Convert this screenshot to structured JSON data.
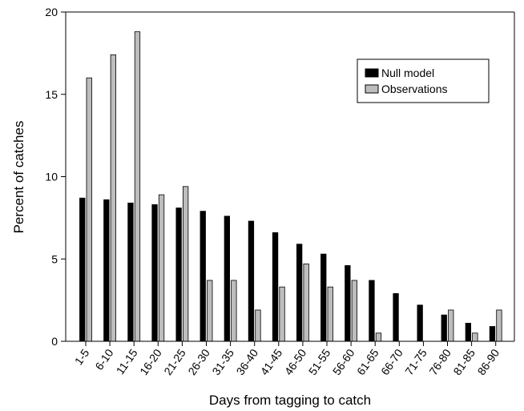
{
  "chart_data": {
    "type": "bar",
    "title": "",
    "xlabel": "Days from tagging to catch",
    "ylabel": "Percent of catches",
    "ylim": [
      0,
      20
    ],
    "yticks": [
      0,
      5,
      10,
      15,
      20
    ],
    "grid": false,
    "legend_position": "top-right",
    "categories": [
      "1-5",
      "6-10",
      "11-15",
      "16-20",
      "21-25",
      "26-30",
      "31-35",
      "36-40",
      "41-45",
      "46-50",
      "51-55",
      "56-60",
      "61-65",
      "66-70",
      "71-75",
      "76-80",
      "81-85",
      "86-90"
    ],
    "series": [
      {
        "name": "Null model",
        "color": "#000000",
        "values": [
          8.7,
          8.6,
          8.4,
          8.3,
          8.1,
          7.9,
          7.6,
          7.3,
          6.6,
          5.9,
          5.3,
          4.6,
          3.7,
          2.9,
          2.2,
          1.6,
          1.1,
          0.9
        ]
      },
      {
        "name": "Observations",
        "color": "#bdbdbd",
        "values": [
          16.0,
          17.4,
          18.8,
          8.9,
          9.4,
          3.7,
          3.7,
          1.9,
          3.3,
          4.7,
          3.3,
          3.7,
          0.5,
          0,
          0,
          1.9,
          0.5,
          1.9
        ]
      }
    ]
  }
}
